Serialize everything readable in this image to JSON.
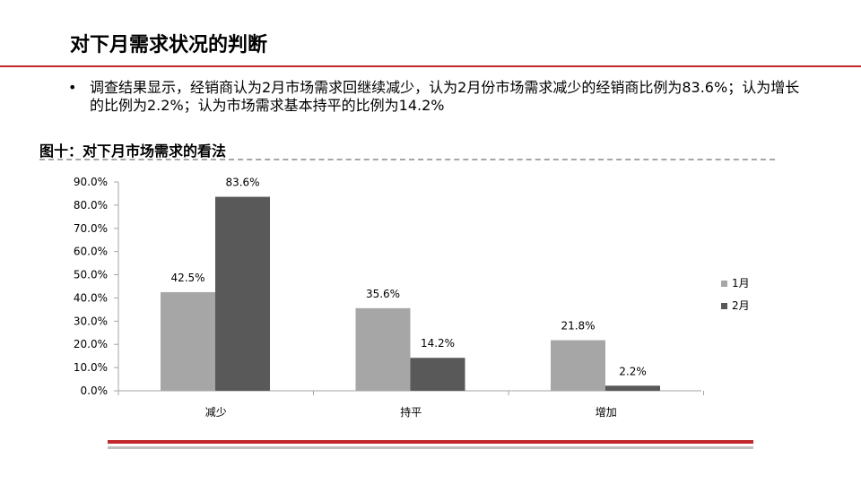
{
  "slide": {
    "title": "对下月需求状况的判断",
    "bullet_symbol": "•",
    "bullet": "调查结果显示，经销商认为2月市场需求回继续减少，认为2月份市场需求减少的经销商比例为83.6%；认为增长的比例为2.2%；认为市场需求基本持平的比例为14.2%",
    "figure_title": "图十：对下月市场需求的看法"
  },
  "colors": {
    "accent_red": "#c0282e",
    "series_jan": "#a6a6a6",
    "series_feb": "#595959"
  },
  "chart_data": {
    "type": "bar",
    "categories": [
      "减少",
      "持平",
      "增加"
    ],
    "series": [
      {
        "name": "1月",
        "values": [
          42.5,
          35.6,
          21.8
        ],
        "labels": [
          "42.5%",
          "35.6%",
          "21.8%"
        ]
      },
      {
        "name": "2月",
        "values": [
          83.6,
          14.2,
          2.2
        ],
        "labels": [
          "83.6%",
          "14.2%",
          "2.2%"
        ]
      }
    ],
    "yticks": [
      "0.0%",
      "10.0%",
      "20.0%",
      "30.0%",
      "40.0%",
      "50.0%",
      "60.0%",
      "70.0%",
      "80.0%",
      "90.0%"
    ],
    "ylim": [
      0,
      90
    ],
    "grid": false,
    "legend": "right"
  }
}
